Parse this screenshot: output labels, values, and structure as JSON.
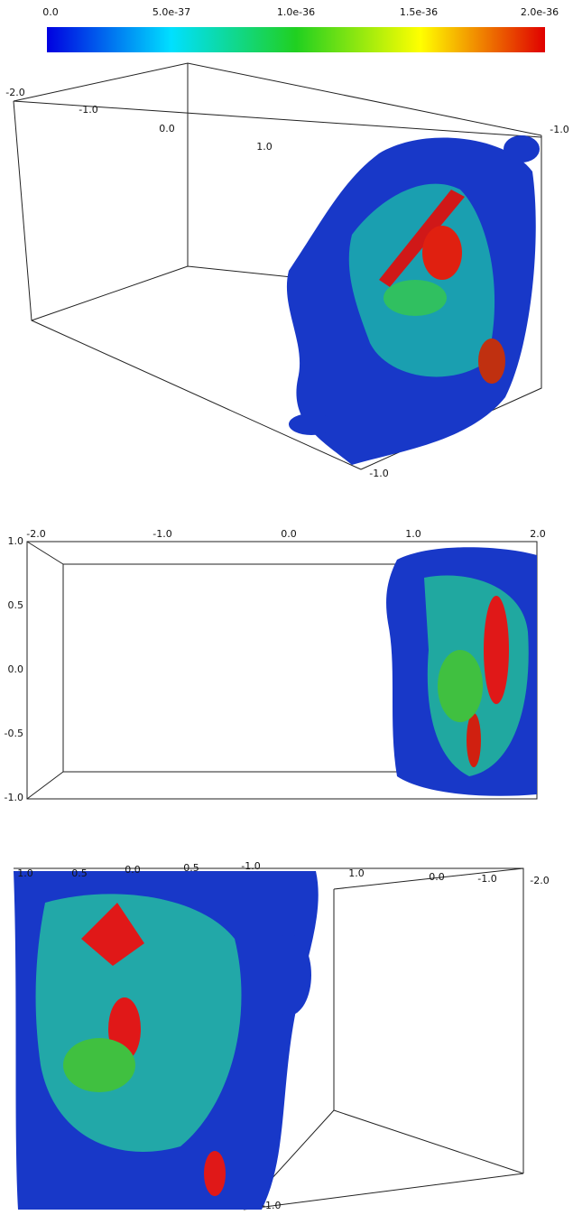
{
  "colorbar": {
    "ticks": [
      "0.0",
      "5.0e-37",
      "1.0e-36",
      "1.5e-36",
      "2.0e-36"
    ]
  },
  "panels": [
    {
      "labels": [
        "-2.0",
        "-1.0",
        "0.0",
        "1.0",
        "-1.0",
        "-1.0"
      ]
    },
    {
      "top_labels": [
        "-2.0",
        "-1.0",
        "0.0",
        "1.0",
        "2.0"
      ],
      "left_labels": [
        "1.0",
        "0.5",
        "0.0",
        "-0.5",
        "-1.0"
      ]
    },
    {
      "top_labels": [
        "1.0",
        "0.5",
        "0.0",
        "-0.5",
        "-1.0",
        "1.0",
        "0.0",
        "-1.0",
        "-2.0"
      ],
      "bottom_label": "-1.0"
    }
  ]
}
